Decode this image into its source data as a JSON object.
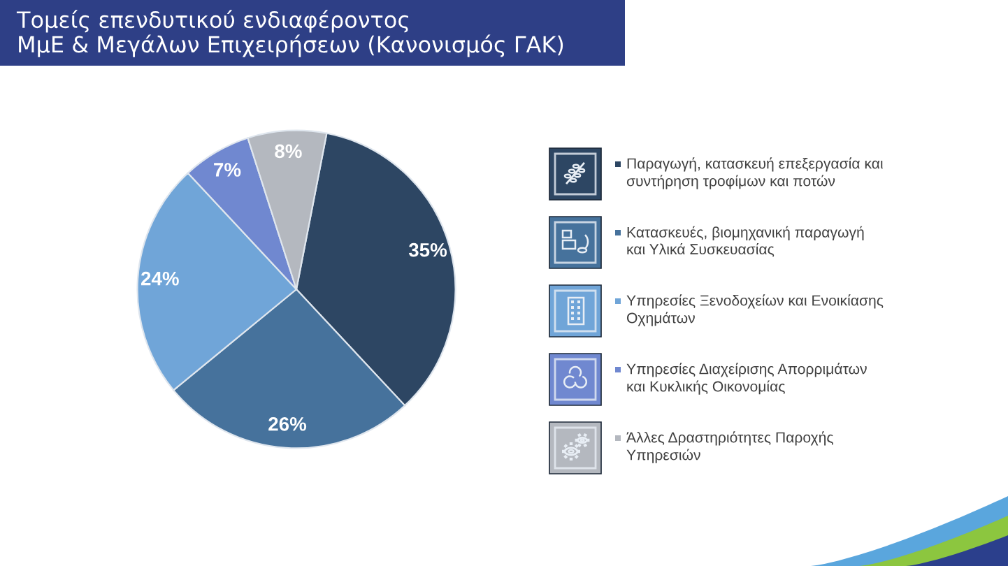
{
  "chart_data": {
    "type": "pie",
    "title": "Τομείς επενδυτικού ενδιαφέροντος\nΜμΕ & Μεγάλων Επιχειρήσεων (Κανονισμός ΓΑΚ)",
    "categories": [
      "Παραγωγή, κατασκευή επεξεργασία και\nσυντήρηση τροφίμων και ποτών",
      "Κατασκευές, βιομηχανική παραγωγή\nκαι Υλικά Συσκευασίας",
      "Υπηρεσίες Ξενοδοχείων και Ενοικίασης\nΟχημάτων",
      "Υπηρεσίες Διαχείρισης Απορριμάτων\nκαι Κυκλικής Οικονομίας",
      "Άλλες Δραστηριότητες Παροχής\nΥπηρεσιών"
    ],
    "values": [
      35,
      26,
      24,
      7,
      8
    ],
    "colors": [
      "#2d4663",
      "#46729c",
      "#70a5d8",
      "#7088d0",
      "#b4b8bf"
    ],
    "value_labels": [
      "35%",
      "26%",
      "24%",
      "7%",
      "8%"
    ],
    "legend": "right"
  }
}
